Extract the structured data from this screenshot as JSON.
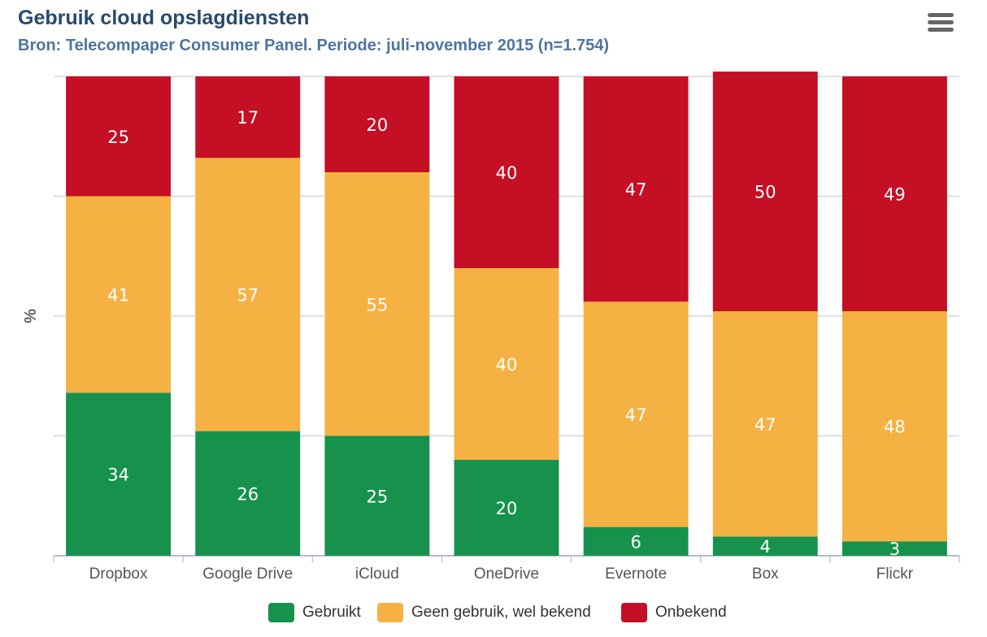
{
  "chart_data": {
    "type": "bar",
    "stacked": true,
    "title": "Gebruik cloud opslagdiensten",
    "subtitle": "Bron: Telecompaper Consumer Panel. Periode: juli-november 2015 (n=1.754)",
    "ylabel": "%",
    "ylim": [
      0,
      100
    ],
    "grid": true,
    "legend_position": "bottom-center",
    "categories": [
      "Dropbox",
      "Google Drive",
      "iCloud",
      "OneDrive",
      "Evernote",
      "Box",
      "Flickr"
    ],
    "series": [
      {
        "name": "Gebruikt",
        "color": "#16924d",
        "values": [
          34,
          26,
          25,
          20,
          6,
          4,
          3
        ]
      },
      {
        "name": "Geen gebruik, wel bekend",
        "color": "#f5b242",
        "values": [
          41,
          57,
          55,
          40,
          47,
          47,
          48
        ]
      },
      {
        "name": "Onbekend",
        "color": "#c40f24",
        "values": [
          25,
          17,
          20,
          40,
          47,
          50,
          49
        ]
      }
    ]
  },
  "toolbar": {
    "menu_icon": "hamburger-menu-icon"
  }
}
